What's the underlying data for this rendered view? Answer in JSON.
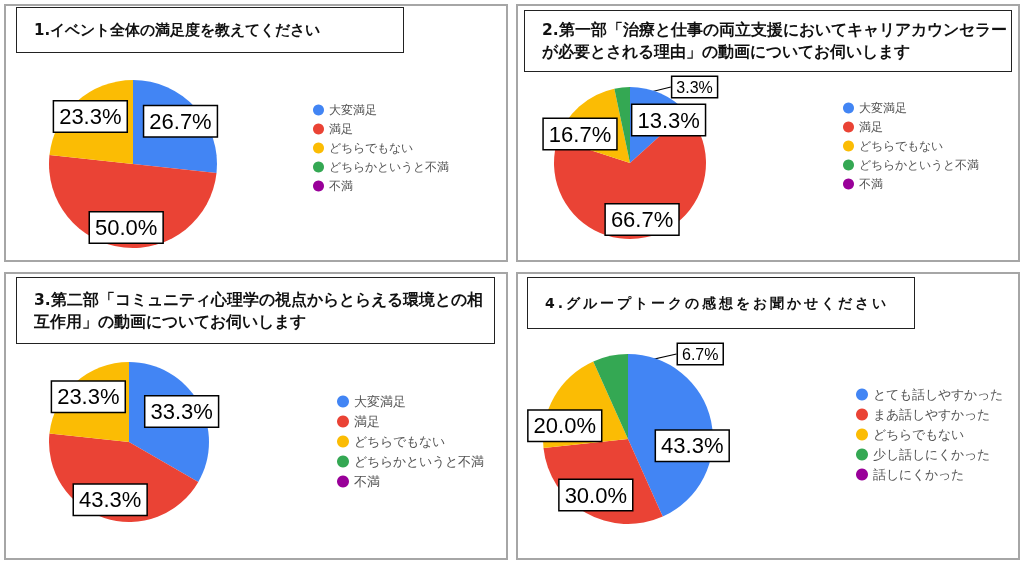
{
  "chart_data": [
    {
      "type": "pie",
      "title": "1.イベント全体の満足度を教えてください",
      "categories": [
        "大変満足",
        "満足",
        "どちらでもない",
        "どちらかというと不満",
        "不満"
      ],
      "values": [
        26.7,
        50.0,
        23.3,
        0,
        0
      ],
      "value_labels": [
        "26.7%",
        "50.0%",
        "23.3%",
        null,
        null
      ],
      "colors": [
        "#4285f4",
        "#ea4335",
        "#fbbc04",
        "#34a853",
        "#990099"
      ],
      "legend": "right"
    },
    {
      "type": "pie",
      "title": "2.第一部「治療と仕事の両立支援においてキャリアカウンセラーが必要とされる理由」の動画についてお伺いします",
      "categories": [
        "大変満足",
        "満足",
        "どちらでもない",
        "どちらかというと不満",
        "不満"
      ],
      "values": [
        13.3,
        66.7,
        16.7,
        3.3,
        0
      ],
      "value_labels": [
        "13.3%",
        "66.7%",
        "16.7%",
        "3.3%",
        null
      ],
      "colors": [
        "#4285f4",
        "#ea4335",
        "#fbbc04",
        "#34a853",
        "#990099"
      ],
      "legend": "right"
    },
    {
      "type": "pie",
      "title": "3.第二部「コミュニティ心理学の視点からとらえる環境との相互作用」の動画についてお伺いします",
      "categories": [
        "大変満足",
        "満足",
        "どちらでもない",
        "どちらかというと不満",
        "不満"
      ],
      "values": [
        33.3,
        43.3,
        23.3,
        0,
        0
      ],
      "value_labels": [
        "33.3%",
        "43.3%",
        "23.3%",
        null,
        null
      ],
      "colors": [
        "#4285f4",
        "#ea4335",
        "#fbbc04",
        "#34a853",
        "#990099"
      ],
      "legend": "right"
    },
    {
      "type": "pie",
      "title": "4.グループトークの感想をお聞かせください",
      "categories": [
        "とても話しやすかった",
        "まあ話しやすかった",
        "どちらでもない",
        "少し話しにくかった",
        "話しにくかった"
      ],
      "values": [
        43.3,
        30.0,
        20.0,
        6.7,
        0
      ],
      "value_labels": [
        "43.3%",
        "30.0%",
        "20.0%",
        "6.7%",
        null
      ],
      "colors": [
        "#4285f4",
        "#ea4335",
        "#fbbc04",
        "#34a853",
        "#990099"
      ],
      "legend": "right"
    }
  ]
}
